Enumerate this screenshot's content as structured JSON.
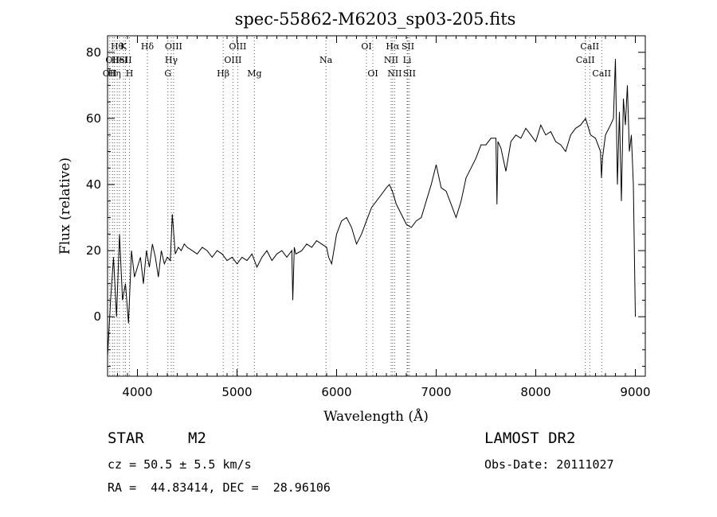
{
  "chart_data": {
    "type": "line",
    "title": "spec-55862-M6203_sp03-205.fits",
    "xlabel": "Wavelength (Å)",
    "ylabel": "Flux (relative)",
    "xlim": [
      3700,
      9100
    ],
    "ylim": [
      -18,
      85
    ],
    "xticks": [
      4000,
      5000,
      6000,
      7000,
      8000,
      9000
    ],
    "yticks": [
      0,
      20,
      40,
      60,
      80
    ],
    "grid": false,
    "series": [
      {
        "x": [
          3700,
          3730,
          3760,
          3790,
          3820,
          3850,
          3880,
          3910,
          3940,
          3970,
          4000,
          4030,
          4060,
          4090,
          4120,
          4150,
          4180,
          4210,
          4240,
          4270,
          4300,
          4330,
          4350,
          4380,
          4410,
          4440,
          4470,
          4500,
          4550,
          4600,
          4650,
          4700,
          4750,
          4800,
          4850,
          4900,
          4950,
          5000,
          5050,
          5100,
          5150,
          5200,
          5250,
          5300,
          5350,
          5400,
          5450,
          5500,
          5550,
          5560,
          5575,
          5590,
          5650,
          5700,
          5750,
          5800,
          5850,
          5900,
          5920,
          5950,
          6000,
          6050,
          6100,
          6150,
          6200,
          6250,
          6300,
          6350,
          6400,
          6450,
          6500,
          6530,
          6560,
          6600,
          6650,
          6700,
          6750,
          6800,
          6850,
          6900,
          6950,
          7000,
          7050,
          7100,
          7150,
          7200,
          7250,
          7300,
          7350,
          7400,
          7450,
          7500,
          7550,
          7600,
          7610,
          7620,
          7650,
          7700,
          7750,
          7800,
          7850,
          7900,
          7950,
          8000,
          8050,
          8100,
          8150,
          8200,
          8250,
          8300,
          8350,
          8400,
          8450,
          8500,
          8550,
          8600,
          8650,
          8660,
          8670,
          8700,
          8750,
          8780,
          8800,
          8820,
          8840,
          8860,
          8880,
          8900,
          8920,
          8940,
          8960,
          8980,
          9000
        ],
        "y": [
          -12,
          5,
          18,
          0,
          25,
          5,
          10,
          -2,
          20,
          12,
          15,
          18,
          10,
          20,
          15,
          22,
          18,
          12,
          20,
          16,
          18,
          17,
          31,
          19,
          21,
          20,
          22,
          21,
          20,
          19,
          21,
          20,
          18,
          20,
          19,
          17,
          18,
          16,
          18,
          17,
          19,
          15,
          18,
          20,
          17,
          19,
          20,
          18,
          20,
          5,
          21,
          19,
          20,
          22,
          21,
          23,
          22,
          21,
          18,
          16,
          25,
          29,
          30,
          27,
          22,
          25,
          29,
          33,
          35,
          37,
          39,
          40,
          38,
          34,
          31,
          28,
          27,
          29,
          30,
          35,
          40,
          46,
          39,
          38,
          34,
          30,
          35,
          42,
          45,
          48,
          52,
          52,
          54,
          54,
          34,
          53,
          51,
          44,
          53,
          55,
          54,
          57,
          55,
          53,
          58,
          55,
          56,
          53,
          52,
          50,
          55,
          57,
          58,
          60,
          55,
          54,
          50,
          42,
          48,
          55,
          58,
          60,
          78,
          40,
          62,
          35,
          66,
          58,
          70,
          50,
          55,
          40,
          0
        ],
        "color": "#000000"
      }
    ],
    "lines": [
      {
        "x": 3722,
        "label": "OII",
        "row": 2
      },
      {
        "x": 3750,
        "label": "OII",
        "row": 1
      },
      {
        "x": 3770,
        "label": "Hη",
        "row": 2
      },
      {
        "x": 3797,
        "label": "Hθ",
        "row": 0
      },
      {
        "x": 3820,
        "label": "HeI",
        "row": 1
      },
      {
        "x": 3860,
        "label": "K",
        "row": 0
      },
      {
        "x": 3880,
        "label": "SII",
        "row": 1
      },
      {
        "x": 3920,
        "label": "H",
        "row": 2
      },
      {
        "x": 4100,
        "label": "Hδ",
        "row": 0
      },
      {
        "x": 4306,
        "label": "G",
        "row": 2
      },
      {
        "x": 4340,
        "label": "Hγ",
        "row": 1
      },
      {
        "x": 4363,
        "label": "OIII",
        "row": 0
      },
      {
        "x": 4861,
        "label": "Hβ",
        "row": 2
      },
      {
        "x": 4959,
        "label": "OIII",
        "row": 1
      },
      {
        "x": 5007,
        "label": "OIII",
        "row": 0
      },
      {
        "x": 5175,
        "label": "Mg",
        "row": 2
      },
      {
        "x": 5893,
        "label": "Na",
        "row": 1
      },
      {
        "x": 6300,
        "label": "OI",
        "row": 0
      },
      {
        "x": 6364,
        "label": "OI",
        "row": 2
      },
      {
        "x": 6548,
        "label": "NII",
        "row": 1
      },
      {
        "x": 6563,
        "label": "Hα",
        "row": 0
      },
      {
        "x": 6583,
        "label": "NII",
        "row": 2
      },
      {
        "x": 6708,
        "label": "Li",
        "row": 1
      },
      {
        "x": 6716,
        "label": "SII",
        "row": 0
      },
      {
        "x": 6731,
        "label": "SII",
        "row": 2
      },
      {
        "x": 8498,
        "label": "CaII",
        "row": 1
      },
      {
        "x": 8542,
        "label": "CaII",
        "row": 0
      },
      {
        "x": 8662,
        "label": "CaII",
        "row": 2
      }
    ]
  },
  "info": {
    "object_class": "STAR",
    "subclass": "M2",
    "survey": "LAMOST DR2",
    "redshift": "cz = 50.5 ± 5.5 km/s",
    "obs_date": "Obs-Date: 20111027",
    "coords": "RA =  44.83414, DEC =  28.96106"
  }
}
